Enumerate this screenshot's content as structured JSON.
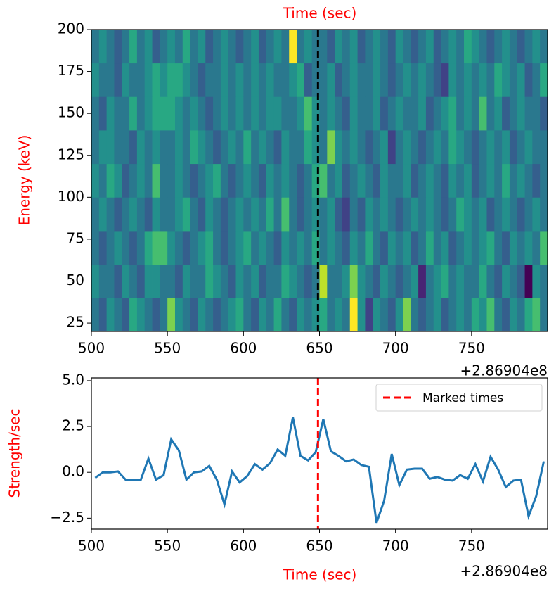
{
  "chart_data": [
    {
      "type": "heatmap",
      "xlabel": "Time (sec)",
      "xlabel_position": "top",
      "ylabel": "Energy (keV)",
      "x_offset_label": "+2.86904e8",
      "xlim": [
        500,
        800
      ],
      "ylim": [
        20,
        200
      ],
      "xticks": [
        500,
        550,
        600,
        650,
        700,
        750
      ],
      "yticks": [
        25,
        50,
        75,
        100,
        125,
        150,
        175,
        200
      ],
      "colormap": "viridis",
      "x_bins": [
        500,
        505,
        510,
        515,
        520,
        525,
        530,
        535,
        540,
        545,
        550,
        555,
        560,
        565,
        570,
        575,
        580,
        585,
        590,
        595,
        600,
        605,
        610,
        615,
        620,
        625,
        630,
        635,
        640,
        645,
        650,
        655,
        660,
        665,
        670,
        675,
        680,
        685,
        690,
        695,
        700,
        705,
        710,
        715,
        720,
        725,
        730,
        735,
        740,
        745,
        750,
        755,
        760,
        765,
        770,
        775,
        780,
        785,
        790,
        795,
        800
      ],
      "y_bins": [
        20,
        40,
        60,
        80,
        100,
        120,
        140,
        160,
        180,
        200
      ],
      "z": [
        [
          4,
          3,
          5,
          4,
          3,
          6,
          5,
          4,
          3,
          4,
          8,
          5,
          4,
          3,
          5,
          4,
          3,
          4,
          5,
          6,
          4,
          3,
          5,
          4,
          6,
          4,
          3,
          5,
          4,
          5,
          6,
          4,
          5,
          4,
          10,
          5,
          2,
          5,
          4,
          3,
          5,
          8,
          4,
          3,
          4,
          5,
          3,
          4,
          5,
          4,
          6,
          5,
          7,
          4,
          3,
          5,
          4,
          6,
          7,
          4
        ],
        [
          5,
          4,
          4,
          3,
          5,
          4,
          3,
          5,
          5,
          4,
          4,
          3,
          5,
          4,
          4,
          6,
          5,
          4,
          3,
          5,
          4,
          5,
          3,
          4,
          4,
          6,
          5,
          4,
          3,
          4,
          9,
          4,
          4,
          5,
          8,
          5,
          4,
          3,
          5,
          4,
          3,
          4,
          5,
          1,
          4,
          5,
          6,
          4,
          5,
          4,
          4,
          6,
          4,
          3,
          5,
          4,
          3,
          0,
          5,
          4
        ],
        [
          4,
          3,
          4,
          5,
          4,
          3,
          4,
          6,
          7,
          7,
          5,
          4,
          3,
          4,
          5,
          6,
          4,
          3,
          4,
          5,
          6,
          4,
          5,
          4,
          3,
          5,
          4,
          5,
          4,
          6,
          4,
          5,
          4,
          3,
          5,
          4,
          6,
          4,
          3,
          5,
          4,
          5,
          3,
          4,
          6,
          4,
          5,
          3,
          4,
          5,
          4,
          5,
          6,
          4,
          3,
          5,
          4,
          5,
          4,
          7
        ],
        [
          4,
          5,
          4,
          3,
          4,
          5,
          4,
          3,
          5,
          4,
          4,
          5,
          6,
          4,
          3,
          5,
          4,
          3,
          4,
          5,
          4,
          5,
          4,
          6,
          4,
          7,
          4,
          3,
          4,
          5,
          4,
          5,
          3,
          2,
          4,
          3,
          5,
          4,
          5,
          4,
          3,
          4,
          5,
          4,
          5,
          4,
          3,
          4,
          6,
          5,
          4,
          5,
          3,
          4,
          5,
          4,
          3,
          4,
          5,
          4
        ],
        [
          5,
          4,
          6,
          5,
          3,
          4,
          5,
          4,
          7,
          4,
          4,
          5,
          4,
          3,
          4,
          5,
          6,
          4,
          3,
          4,
          5,
          4,
          3,
          5,
          4,
          5,
          4,
          3,
          4,
          6,
          7,
          4,
          5,
          3,
          4,
          5,
          4,
          3,
          5,
          4,
          4,
          5,
          3,
          4,
          5,
          4,
          3,
          5,
          4,
          5,
          3,
          4,
          5,
          4,
          6,
          4,
          5,
          4,
          3,
          4
        ],
        [
          4,
          5,
          5,
          4,
          4,
          3,
          5,
          4,
          5,
          4,
          4,
          5,
          4,
          6,
          5,
          4,
          3,
          4,
          5,
          4,
          6,
          4,
          5,
          4,
          3,
          5,
          4,
          4,
          6,
          5,
          4,
          8,
          5,
          4,
          5,
          4,
          3,
          4,
          5,
          2,
          4,
          5,
          4,
          3,
          4,
          5,
          4,
          6,
          5,
          4,
          3,
          4,
          5,
          4,
          5,
          3,
          4,
          5,
          4,
          4
        ],
        [
          4,
          3,
          5,
          4,
          4,
          6,
          4,
          5,
          6,
          6,
          6,
          5,
          4,
          5,
          4,
          3,
          4,
          5,
          4,
          5,
          4,
          5,
          4,
          5,
          5,
          4,
          4,
          5,
          7,
          5,
          4,
          5,
          4,
          3,
          5,
          4,
          4,
          5,
          3,
          4,
          5,
          4,
          4,
          5,
          3,
          4,
          5,
          6,
          4,
          5,
          4,
          7,
          4,
          5,
          3,
          4,
          5,
          4,
          4,
          3
        ],
        [
          5,
          4,
          4,
          3,
          5,
          4,
          4,
          5,
          6,
          5,
          6,
          6,
          5,
          4,
          3,
          4,
          4,
          5,
          4,
          5,
          4,
          5,
          4,
          5,
          4,
          4,
          5,
          6,
          3,
          4,
          4,
          5,
          3,
          4,
          5,
          4,
          4,
          5,
          4,
          3,
          4,
          5,
          4,
          5,
          4,
          3,
          2,
          5,
          4,
          5,
          4,
          5,
          4,
          6,
          5,
          4,
          5,
          3,
          4,
          6
        ],
        [
          4,
          5,
          4,
          3,
          4,
          6,
          4,
          5,
          3,
          4,
          5,
          4,
          6,
          4,
          5,
          3,
          4,
          5,
          4,
          3,
          4,
          5,
          3,
          4,
          5,
          4,
          10,
          4,
          5,
          4,
          4,
          3,
          5,
          4,
          5,
          3,
          4,
          5,
          4,
          3,
          5,
          4,
          3,
          4,
          5,
          3,
          4,
          5,
          4,
          6,
          5,
          4,
          3,
          4,
          5,
          4,
          3,
          4,
          5,
          4
        ]
      ],
      "vline": {
        "x": 649,
        "color": "#000000"
      }
    },
    {
      "type": "line",
      "xlabel": "Time (sec)",
      "ylabel": "Strength/sec",
      "x_offset_label": "+2.86904e8",
      "xlim": [
        500,
        800
      ],
      "ylim": [
        -3.1,
        5.15
      ],
      "xticks": [
        500,
        550,
        600,
        650,
        700,
        750
      ],
      "yticks": [
        {
          "value": -2.5,
          "label": "−2.5"
        },
        {
          "value": 0,
          "label": "0.0"
        },
        {
          "value": 2.5,
          "label": "2.5"
        },
        {
          "value": 5,
          "label": "5.0"
        }
      ],
      "x": [
        502.5,
        507.5,
        512.5,
        517.5,
        522.5,
        527.5,
        532.5,
        537.5,
        542.5,
        547.5,
        552.5,
        557.5,
        562.5,
        567.5,
        572.5,
        577.5,
        582.5,
        587.5,
        592.5,
        597.5,
        602.5,
        607.5,
        612.5,
        617.5,
        622.5,
        627.5,
        632.5,
        637.5,
        642.5,
        647.5,
        652.5,
        657.5,
        662.5,
        667.5,
        672.5,
        677.5,
        682.5,
        687.5,
        692.5,
        697.5,
        702.5,
        707.5,
        712.5,
        717.5,
        722.5,
        727.5,
        732.5,
        737.5,
        742.5,
        747.5,
        752.5,
        757.5,
        762.5,
        767.5,
        772.5,
        777.5,
        782.5,
        787.5,
        792.5,
        797.5
      ],
      "series": [
        {
          "color": "#1f77b4",
          "values": [
            -0.3,
            0,
            0,
            0.05,
            -0.4,
            -0.4,
            -0.4,
            0.75,
            -0.4,
            -0.15,
            1.8,
            1.2,
            -0.4,
            0,
            0.05,
            0.35,
            -0.4,
            -1.75,
            0.05,
            -0.55,
            -0.2,
            0.45,
            0.15,
            0.5,
            1.25,
            0.9,
            3,
            0.9,
            0.65,
            1.1,
            2.9,
            1.15,
            0.9,
            0.6,
            0.7,
            0.4,
            0.3,
            -2.75,
            -1.55,
            1,
            -0.7,
            0.15,
            0.2,
            0.2,
            -0.35,
            -0.25,
            -0.4,
            -0.45,
            -0.15,
            -0.35,
            0.45,
            -0.5,
            0.85,
            0.15,
            -0.8,
            -0.45,
            -0.4,
            -2.4,
            -1.3,
            0.6
          ]
        }
      ],
      "vlines": {
        "name": "Marked times",
        "x": [
          649
        ],
        "color": "#ff0000"
      },
      "legend": "upper right"
    }
  ]
}
